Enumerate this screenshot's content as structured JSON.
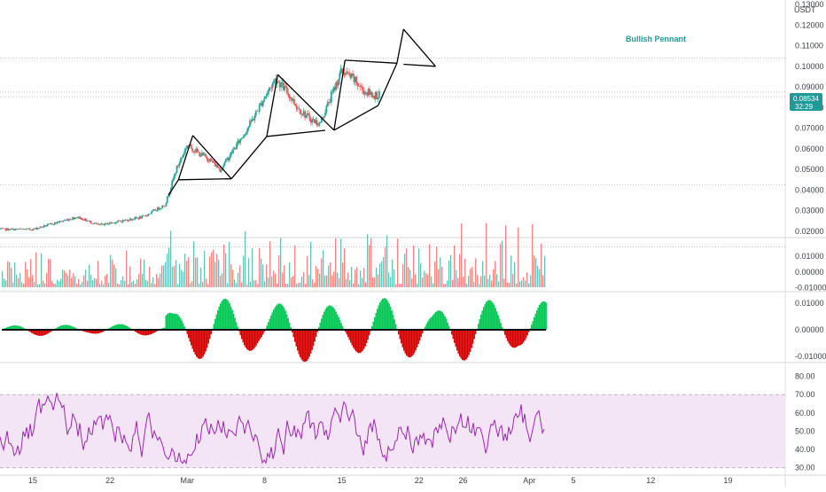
{
  "header": {
    "currency": "USDT"
  },
  "colors": {
    "up": "#26a69a",
    "down": "#ef5350",
    "macd_up": "#00c853",
    "macd_down": "#d50000",
    "rsi_line": "#9c27b0",
    "rsi_band": "#f3e5f5",
    "pattern": "#000000",
    "badge": "#1e9a98",
    "grid": "#e6e6e6"
  },
  "chart_data": [
    {
      "type": "candlestick",
      "panel": "price",
      "y_ticks": [
        "0.13000",
        "0.12000",
        "0.11000",
        "0.10000",
        "0.09000",
        "0.08000",
        "0.07000",
        "0.06000",
        "0.05000",
        "0.04000",
        "0.03000",
        "0.02000"
      ],
      "ylim": [
        0.017,
        0.13
      ],
      "last_price": "0.08534",
      "countdown": "32:29",
      "annotation": "Bullish Pennant",
      "pattern_points": [
        [
          12.3,
          0.0375
        ],
        [
          13.2,
          0.045
        ],
        [
          14.5,
          0.0665
        ],
        [
          17.2,
          0.0495
        ],
        [
          18.0,
          0.0455
        ],
        [
          21.2,
          0.066
        ],
        [
          22.2,
          0.096
        ],
        [
          26.5,
          0.069
        ],
        [
          27.3,
          0.069
        ],
        [
          28.3,
          0.103
        ],
        [
          31.3,
          0.081
        ],
        [
          33.0,
          0.1015
        ],
        [
          33.6,
          0.118
        ],
        [
          36.5,
          0.1
        ],
        [
          33.6,
          0.101
        ]
      ],
      "series": [
        {
          "x": [
            0,
            2,
            4,
            6,
            8,
            10,
            12,
            13,
            14,
            15,
            16,
            17,
            18,
            19,
            20,
            21,
            22,
            23,
            24,
            25,
            26,
            27,
            28,
            29,
            30,
            31
          ],
          "close": [
            0.021,
            0.024,
            0.027,
            0.023,
            0.025,
            0.027,
            0.033,
            0.05,
            0.062,
            0.058,
            0.055,
            0.05,
            0.058,
            0.066,
            0.075,
            0.085,
            0.094,
            0.088,
            0.08,
            0.075,
            0.072,
            0.085,
            0.098,
            0.094,
            0.088,
            0.086
          ]
        }
      ]
    },
    {
      "type": "histogram",
      "panel": "volume",
      "y_ticks": [
        "0.01000",
        "0.00000",
        "-0.01000"
      ],
      "ylim": [
        -0.012,
        0.022
      ]
    },
    {
      "type": "histogram",
      "panel": "macd",
      "y_ticks": [
        "0.01000",
        "0.00000",
        "-0.01000"
      ],
      "ylim": [
        -0.012,
        0.014
      ]
    },
    {
      "type": "line",
      "panel": "rsi",
      "y_ticks": [
        "80.00",
        "70.00",
        "60.00",
        "50.00",
        "40.00",
        "30.00"
      ],
      "ylim": [
        26,
        87
      ],
      "band": [
        30,
        70
      ]
    },
    {
      "type": "time_axis",
      "x_ticks": [
        {
          "label": "15",
          "x": 0
        },
        {
          "label": "22",
          "x": 7
        },
        {
          "label": "Mar",
          "x": 14
        },
        {
          "label": "8",
          "x": 21
        },
        {
          "label": "15",
          "x": 28
        },
        {
          "label": "22",
          "x": 35
        },
        {
          "label": "26",
          "x": 39
        },
        {
          "label": "Apr",
          "x": 45
        },
        {
          "label": "5",
          "x": 49
        },
        {
          "label": "12",
          "x": 56
        },
        {
          "label": "19",
          "x": 63
        }
      ]
    }
  ]
}
